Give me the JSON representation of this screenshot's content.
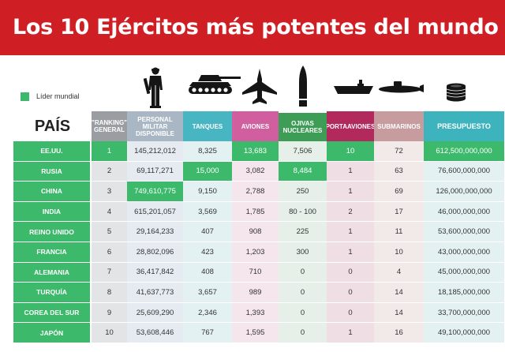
{
  "title": "Los 10 Ejércitos más potentes del mundo",
  "legend": {
    "label": "Líder mundial",
    "color": "#3cb96a"
  },
  "icons": [
    "soldier-icon",
    "tank-icon",
    "fighter-jet-icon",
    "warhead-icon",
    "aircraft-carrier-icon",
    "submarine-icon",
    "coins-icon"
  ],
  "chart_data": {
    "type": "table",
    "columns": [
      "PAÍS",
      "\"RANKING\" GENERAL",
      "PERSONAL MILITAR DISPONIBLE",
      "TANQUES",
      "AVIONES",
      "OJIVAS NUCLEARES",
      "PORTAAVIONES",
      "SUBMARINOS",
      "PRESUPUESTO"
    ],
    "rows": [
      [
        "EE.UU.",
        "1",
        "145,212,012",
        "8,325",
        "13,683",
        "7,506",
        "10",
        "72",
        "612,500,000,000"
      ],
      [
        "RUSIA",
        "2",
        "69,117,271",
        "15,000",
        "3,082",
        "8,484",
        "1",
        "63",
        "76,600,000,000"
      ],
      [
        "CHINA",
        "3",
        "749,610,775",
        "9,150",
        "2,788",
        "250",
        "1",
        "69",
        "126,000,000,000"
      ],
      [
        "INDIA",
        "4",
        "615,201,057",
        "3,569",
        "1,785",
        "80 - 100",
        "2",
        "17",
        "46,000,000,000"
      ],
      [
        "REINO UNIDO",
        "5",
        "29,164,233",
        "407",
        "908",
        "225",
        "1",
        "11",
        "53,600,000,000"
      ],
      [
        "FRANCIA",
        "6",
        "28,802,096",
        "423",
        "1,203",
        "300",
        "1",
        "10",
        "43,000,000,000"
      ],
      [
        "ALEMANIA",
        "7",
        "36,417,842",
        "408",
        "710",
        "0",
        "0",
        "4",
        "45,000,000,000"
      ],
      [
        "TURQUÍA",
        "8",
        "41,637,773",
        "3,657",
        "989",
        "0",
        "0",
        "14",
        "18,185,000,000"
      ],
      [
        "COREA DEL SUR",
        "9",
        "25,609,290",
        "2,346",
        "1,393",
        "0",
        "0",
        "14",
        "33,700,000,000"
      ],
      [
        "JAPÓN",
        "10",
        "53,608,446",
        "767",
        "1,595",
        "0",
        "1",
        "16",
        "49,100,000,000"
      ]
    ],
    "leaders": [
      [
        0,
        1
      ],
      [
        0,
        4
      ],
      [
        0,
        6
      ],
      [
        0,
        8
      ],
      [
        1,
        3
      ],
      [
        1,
        5
      ],
      [
        2,
        2
      ]
    ]
  }
}
